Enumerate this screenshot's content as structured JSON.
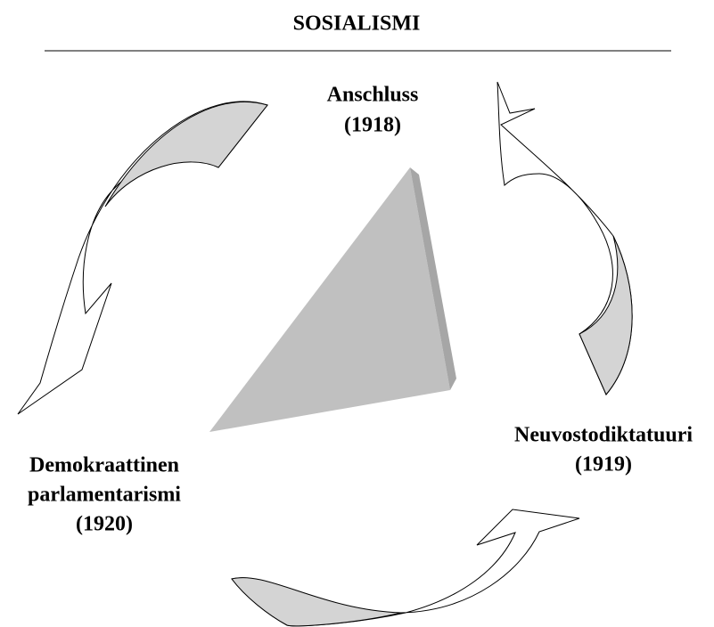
{
  "title": "SOSIALISMI",
  "nodes": [
    {
      "label": [
        "Anschluss",
        "(1918)"
      ]
    },
    {
      "label": [
        "Neuvostodiktatuuri",
        "(1919)"
      ]
    },
    {
      "label": [
        "Demokraattinen",
        "parlamentarismi",
        "(1920)"
      ]
    }
  ]
}
